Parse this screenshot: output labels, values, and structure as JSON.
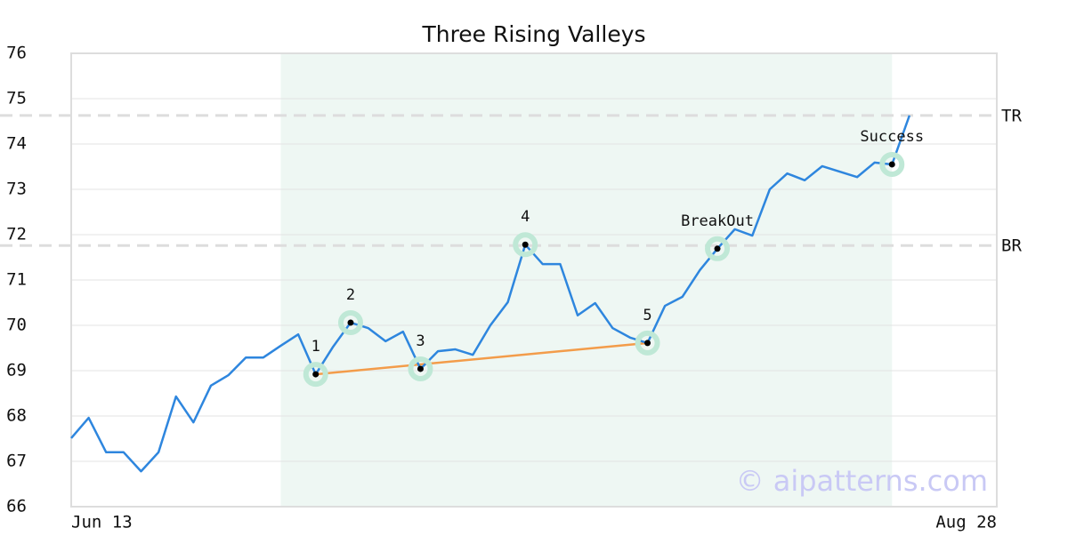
{
  "chart_data": {
    "type": "line",
    "title": "Three Rising Valleys",
    "values": [
      67.51,
      67.96,
      67.2,
      67.2,
      66.78,
      67.2,
      68.43,
      67.86,
      68.67,
      68.9,
      69.29,
      69.29,
      69.55,
      69.8,
      68.92,
      69.53,
      70.06,
      69.94,
      69.65,
      69.86,
      69.04,
      69.43,
      69.47,
      69.35,
      70.0,
      70.51,
      71.78,
      71.35,
      71.35,
      70.22,
      70.49,
      69.94,
      69.73,
      69.61,
      70.43,
      70.63,
      71.22,
      71.69,
      72.12,
      71.98,
      73.0,
      73.35,
      73.2,
      73.51,
      73.39,
      73.27,
      73.59,
      73.55,
      74.63
    ],
    "color": "#2e86de",
    "xlim": [
      0,
      53
    ],
    "xticks": [
      {
        "value": 0,
        "label": "Jun 13"
      },
      {
        "value": 53,
        "label": "Aug 28"
      }
    ],
    "ylim": [
      66,
      76
    ],
    "yticks": [
      66,
      67,
      68,
      69,
      70,
      71,
      72,
      73,
      74,
      75,
      76
    ],
    "grid": true,
    "highlight": [
      12,
      47
    ],
    "highlight_color": "#eef7f3",
    "annotations": [
      {
        "label": "1",
        "x": 14,
        "value": 68.92
      },
      {
        "label": "2",
        "x": 16,
        "value": 70.06
      },
      {
        "label": "3",
        "x": 20,
        "value": 69.04
      },
      {
        "label": "4",
        "x": 26,
        "value": 71.78
      },
      {
        "label": "5",
        "x": 33,
        "value": 69.61
      },
      {
        "label": "BreakOut",
        "x": 37,
        "value": 71.69
      },
      {
        "label": "Success",
        "x": 47,
        "value": 73.55
      }
    ],
    "trendline": {
      "from": [
        14,
        68.92
      ],
      "to": [
        33,
        69.61
      ],
      "color": "#f39c4a"
    },
    "levels": [
      {
        "label": "TR",
        "value": 74.63
      },
      {
        "label": "BR",
        "value": 71.76
      }
    ],
    "watermark": "© aipatterns.com"
  }
}
